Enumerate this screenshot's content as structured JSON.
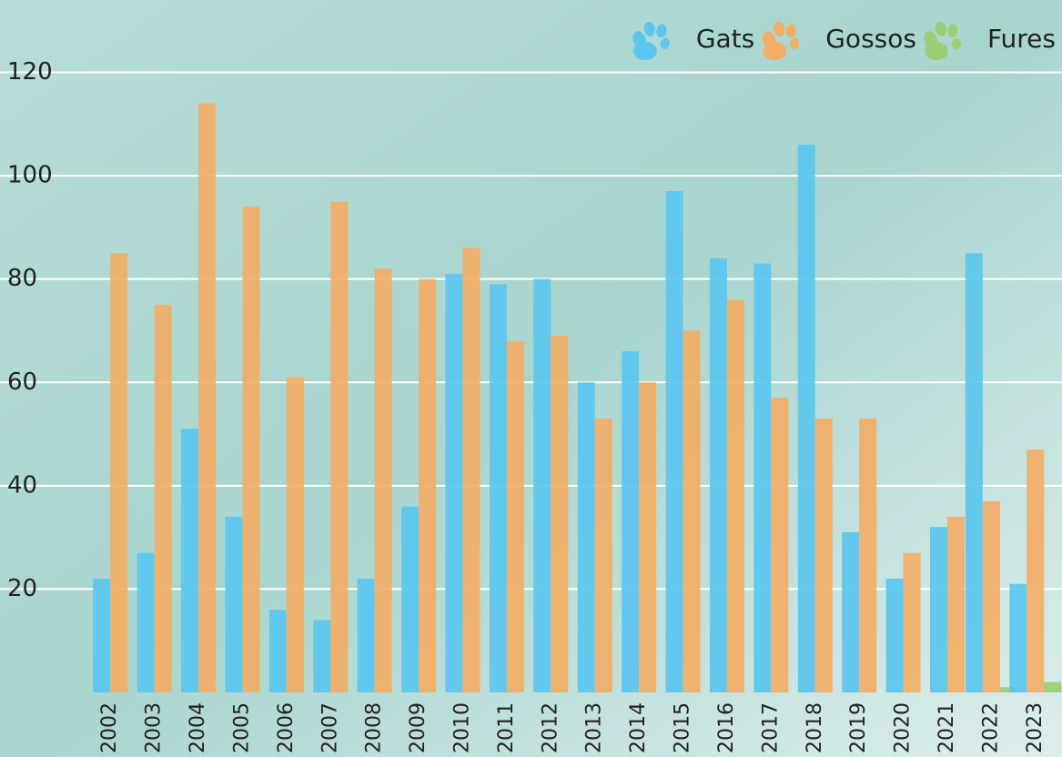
{
  "chart_data": {
    "type": "bar",
    "categories": [
      "2002",
      "2003",
      "2004",
      "2005",
      "2006",
      "2007",
      "2008",
      "2009",
      "2010",
      "2011",
      "2012",
      "2013",
      "2014",
      "2015",
      "2016",
      "2017",
      "2018",
      "2019",
      "2020",
      "2021",
      "2022",
      "2023"
    ],
    "series": [
      {
        "name": "Gats",
        "color": "#5bc5ee",
        "values": [
          22,
          27,
          51,
          34,
          16,
          14,
          22,
          36,
          81,
          79,
          80,
          60,
          66,
          97,
          84,
          83,
          106,
          31,
          22,
          32,
          85,
          21
        ]
      },
      {
        "name": "Gossos",
        "color": "#f2ae66",
        "values": [
          85,
          75,
          114,
          94,
          61,
          95,
          82,
          80,
          86,
          68,
          69,
          53,
          60,
          70,
          76,
          57,
          53,
          53,
          27,
          34,
          37,
          47
        ]
      },
      {
        "name": "Fures",
        "color": "#9ccc74",
        "values": [
          null,
          null,
          null,
          null,
          null,
          null,
          null,
          null,
          null,
          null,
          null,
          null,
          null,
          null,
          null,
          null,
          null,
          null,
          null,
          null,
          1,
          2
        ]
      }
    ],
    "ylim": [
      0,
      134
    ],
    "yticks": [
      20,
      40,
      60,
      80,
      100,
      120
    ],
    "grid": true
  }
}
